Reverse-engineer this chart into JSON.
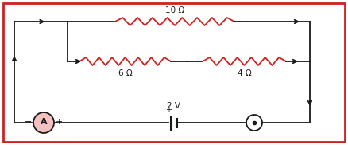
{
  "bg_color": "#ffffff",
  "border_color": "#cc2222",
  "wire_color": "#1a1a1a",
  "resistor_color": "#cc2222",
  "ammeter_fill": "#f5c0c0",
  "top_resistor_label": "10 Ω",
  "mid_left_resistor_label": "6 Ω",
  "mid_right_resistor_label": "4 Ω",
  "battery_label": "2 V",
  "fig_width": 4.38,
  "fig_height": 1.82
}
